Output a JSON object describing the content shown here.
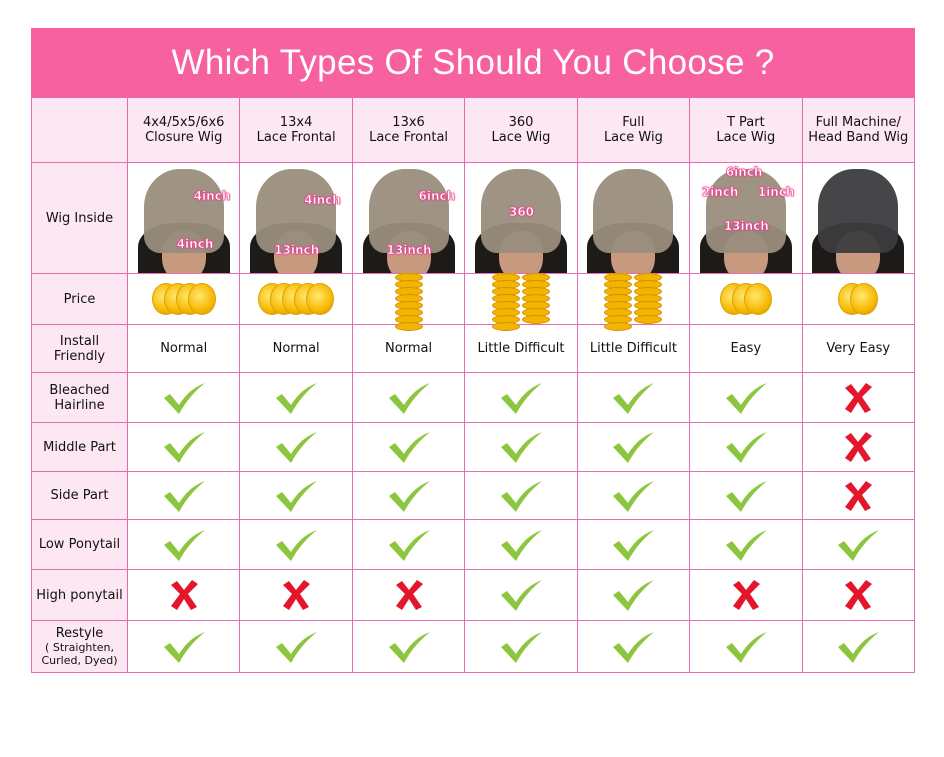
{
  "title": "Which Types Of Should You Choose ?",
  "columns": [
    {
      "line1": "4x4/5x5/6x6",
      "line2": "Closure Wig",
      "labels": [
        "4inch",
        "4inch"
      ],
      "coins": 4,
      "stacked": false
    },
    {
      "line1": "13x4",
      "line2": "Lace Frontal",
      "labels": [
        "4inch",
        "13inch"
      ],
      "coins": 5,
      "stacked": false
    },
    {
      "line1": "13x6",
      "line2": "Lace Frontal",
      "labels": [
        "6inch",
        "13inch"
      ],
      "coins": 3,
      "stacked": true
    },
    {
      "line1": "360",
      "line2": "Lace Wig",
      "labels": [
        "360"
      ],
      "coins": 4,
      "stacked": true
    },
    {
      "line1": "Full",
      "line2": "Lace Wig",
      "labels": [],
      "coins": 4,
      "stacked": true
    },
    {
      "line1": "T Part",
      "line2": "Lace Wig",
      "labels": [
        "6inch",
        "2inch",
        "1inch",
        "13inch"
      ],
      "coins": 3,
      "stacked": false
    },
    {
      "line1": "Full Machine/",
      "line2": "Head Band Wig",
      "labels": [],
      "coins": 2,
      "stacked": false
    }
  ],
  "row_labels": {
    "wig_inside": "Wig Inside",
    "price": "Price",
    "install": [
      "Install",
      "Friendly"
    ]
  },
  "install_values": [
    "Normal",
    "Normal",
    "Normal",
    "Little Difficult",
    "Little Difficult",
    "Easy",
    "Very Easy"
  ],
  "feature_rows": [
    {
      "label": [
        "Bleached",
        "Hairline"
      ],
      "values": [
        "check",
        "check",
        "check",
        "check",
        "check",
        "check",
        "cross"
      ]
    },
    {
      "label": [
        "Middle Part"
      ],
      "values": [
        "check",
        "check",
        "check",
        "check",
        "check",
        "check",
        "cross"
      ]
    },
    {
      "label": [
        "Side Part"
      ],
      "values": [
        "check",
        "check",
        "check",
        "check",
        "check",
        "check",
        "cross"
      ]
    },
    {
      "label": [
        "Low Ponytail"
      ],
      "values": [
        "check",
        "check",
        "check",
        "check",
        "check",
        "check",
        "check"
      ]
    },
    {
      "label": [
        "High ponytail"
      ],
      "values": [
        "cross",
        "cross",
        "cross",
        "check",
        "check",
        "cross",
        "cross"
      ]
    },
    {
      "label": [
        "Restyle",
        "( Straighten,",
        "Curled, Dyed)"
      ],
      "values": [
        "check",
        "check",
        "check",
        "check",
        "check",
        "check",
        "check"
      ]
    }
  ],
  "colors": {
    "banner": "#f7619f",
    "header_bg": "#fde7f2",
    "border": "#e46cb0",
    "check": "#8cc63e",
    "cross": "#e3162b",
    "coin": "#f6b800"
  }
}
